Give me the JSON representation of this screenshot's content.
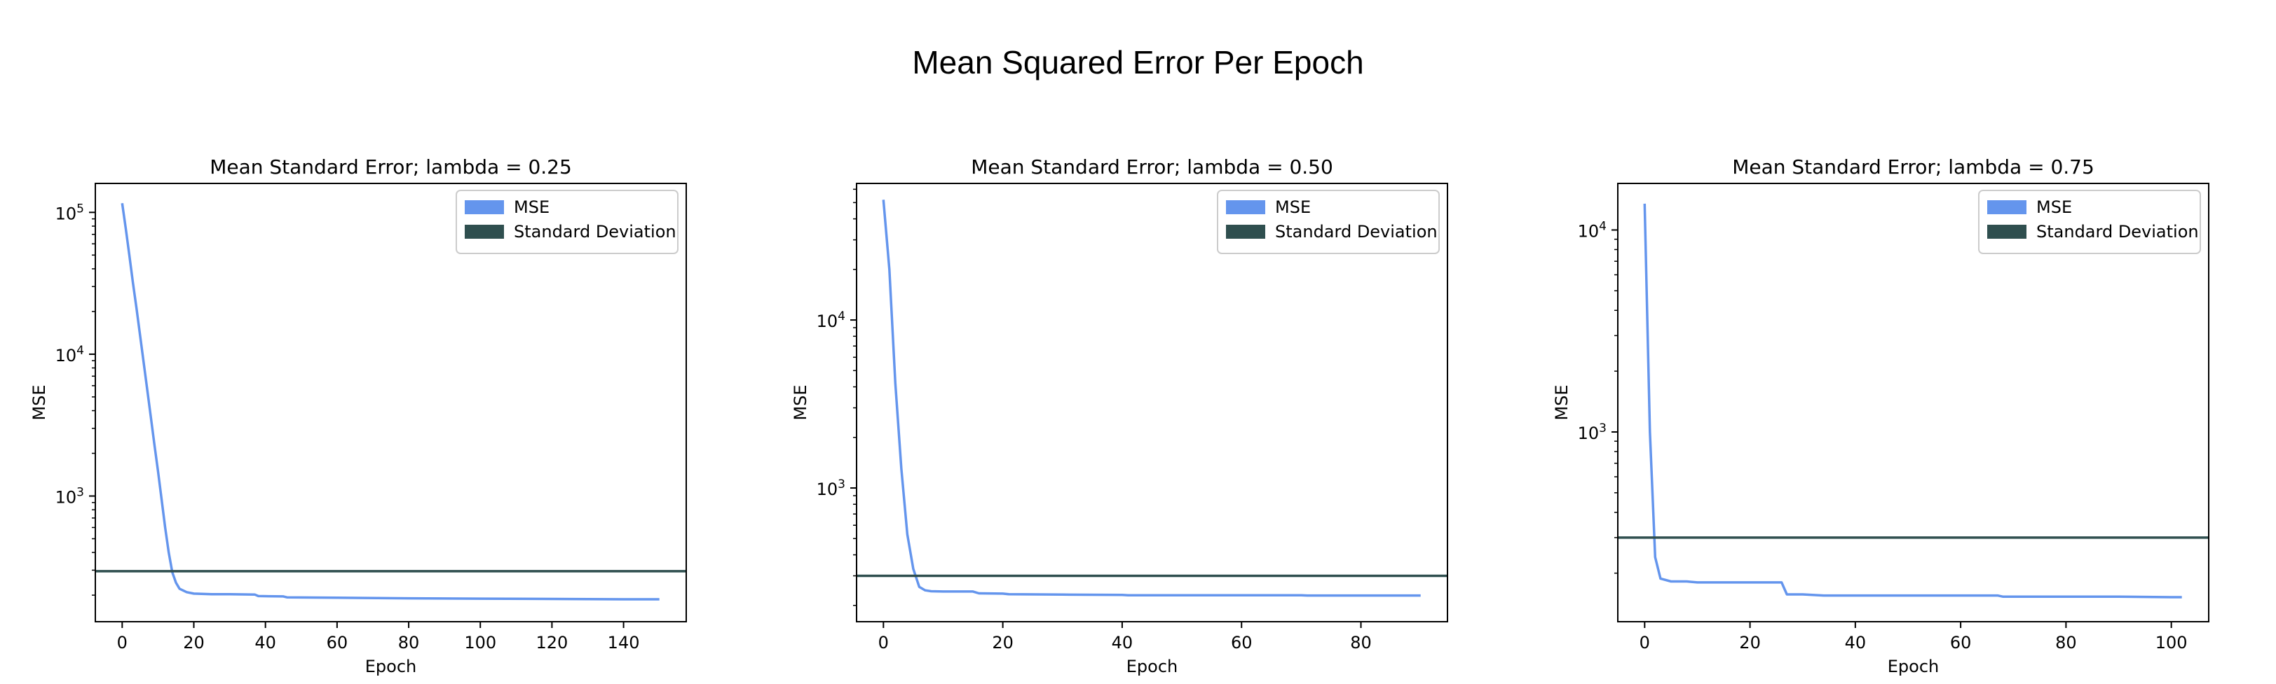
{
  "figure": {
    "title": "Mean Squared Error Per Epoch"
  },
  "colors": {
    "mse": "#6495ED",
    "std": "#2F4F4F",
    "axes": "#000000"
  },
  "chart_data": [
    {
      "type": "line",
      "title": "Mean Standard Error; lambda = 0.25",
      "xlabel": "Epoch",
      "ylabel": "MSE",
      "yscale": "log",
      "xlim": [
        -7.5,
        157.5
      ],
      "ylim": [
        130,
        160000
      ],
      "xticks": [
        0,
        20,
        40,
        60,
        80,
        100,
        120,
        140
      ],
      "yticks": [
        {
          "value": 1000,
          "label": "10^3"
        },
        {
          "value": 10000,
          "label": "10^4"
        },
        {
          "value": 100000,
          "label": "10^5"
        }
      ],
      "legend": {
        "position": "top-right",
        "entries": [
          "MSE",
          "Standard Deviation"
        ]
      },
      "grid": false,
      "series": [
        {
          "name": "MSE",
          "x": [
            0,
            1,
            2,
            3,
            4,
            5,
            6,
            7,
            8,
            9,
            10,
            11,
            12,
            13,
            14,
            15,
            16,
            18,
            20,
            25,
            30,
            37,
            38,
            45,
            46,
            60,
            80,
            100,
            120,
            140,
            150
          ],
          "y": [
            116000,
            77000,
            50000,
            32000,
            21000,
            13500,
            8700,
            5600,
            3600,
            2300,
            1500,
            950,
            600,
            400,
            290,
            245,
            222,
            210,
            205,
            203,
            203,
            202,
            197,
            196,
            193,
            192,
            190,
            189,
            188,
            187,
            187
          ]
        },
        {
          "name": "Standard Deviation",
          "hline": 295
        }
      ]
    },
    {
      "type": "line",
      "title": "Mean Standard Error; lambda = 0.50",
      "xlabel": "Epoch",
      "ylabel": "MSE",
      "yscale": "log",
      "xlim": [
        -4.5,
        94.5
      ],
      "ylim": [
        160,
        65000
      ],
      "xticks": [
        0,
        20,
        40,
        60,
        80
      ],
      "yticks": [
        {
          "value": 1000,
          "label": "10^3"
        },
        {
          "value": 10000,
          "label": "10^4"
        }
      ],
      "legend": {
        "position": "top-right",
        "entries": [
          "MSE",
          "Standard Deviation"
        ]
      },
      "grid": false,
      "series": [
        {
          "name": "MSE",
          "x": [
            0,
            1,
            2,
            3,
            4,
            5,
            6,
            7,
            8,
            10,
            12,
            15,
            16,
            20,
            21,
            30,
            40,
            41,
            50,
            60,
            70,
            71,
            80,
            90
          ],
          "y": [
            52000,
            20000,
            4200,
            1300,
            530,
            330,
            258,
            246,
            243,
            242,
            242,
            242,
            236,
            235,
            233,
            232,
            231,
            230,
            230,
            230,
            230,
            229,
            229,
            229
          ]
        },
        {
          "name": "Standard Deviation",
          "hline": 300
        }
      ]
    },
    {
      "type": "line",
      "title": "Mean Standard Error; lambda = 0.75",
      "xlabel": "Epoch",
      "ylabel": "MSE",
      "yscale": "log",
      "xlim": [
        -5.1,
        107.1
      ],
      "ylim": [
        115,
        17000
      ],
      "xticks": [
        0,
        20,
        40,
        60,
        80,
        100
      ],
      "yticks": [
        {
          "value": 1000,
          "label": "10^3"
        },
        {
          "value": 10000,
          "label": "10^4"
        }
      ],
      "legend": {
        "position": "top-right",
        "entries": [
          "MSE",
          "Standard Deviation"
        ]
      },
      "grid": false,
      "series": [
        {
          "name": "MSE",
          "x": [
            0,
            1,
            2,
            3,
            5,
            8,
            10,
            15,
            20,
            26,
            27,
            30,
            34,
            40,
            50,
            60,
            67,
            68,
            80,
            90,
            100,
            102
          ],
          "y": [
            13500,
            1000,
            240,
            188,
            182,
            182,
            180,
            180,
            180,
            180,
            157,
            157,
            155,
            155,
            155,
            155,
            155,
            153,
            153,
            153,
            152,
            152
          ]
        },
        {
          "name": "Standard Deviation",
          "hline": 300
        }
      ]
    }
  ]
}
